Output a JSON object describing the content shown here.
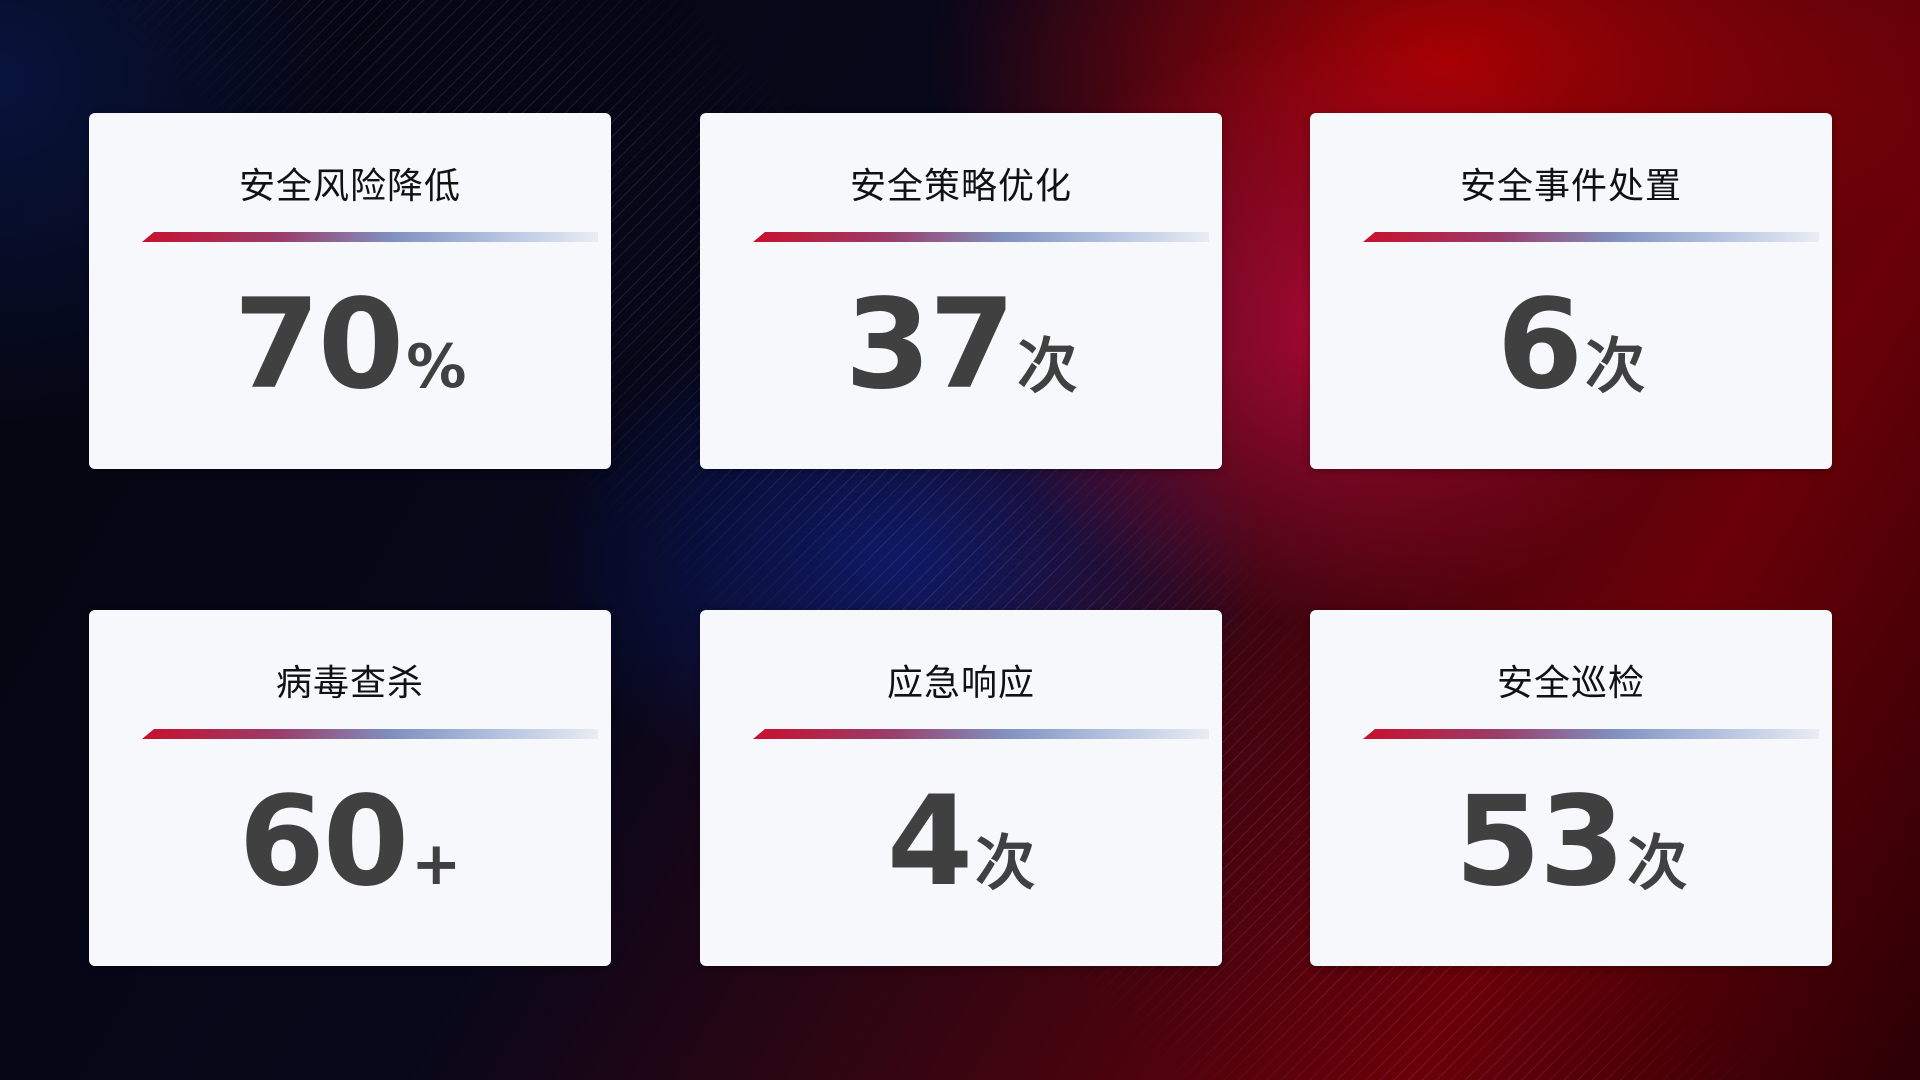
{
  "colors": {
    "accent_red": "#c8102e",
    "accent_blue": "#8090c0",
    "card_bg": "#f6f8fc",
    "value_text": "#404040"
  },
  "cards": [
    {
      "title": "安全风险降低",
      "value": "70",
      "unit": "%"
    },
    {
      "title": "安全策略优化",
      "value": "37",
      "unit": "次"
    },
    {
      "title": "安全事件处置",
      "value": "6",
      "unit": "次"
    },
    {
      "title": "病毒查杀",
      "value": "60",
      "unit": "+"
    },
    {
      "title": "应急响应",
      "value": "4",
      "unit": "次"
    },
    {
      "title": "安全巡检",
      "value": "53",
      "unit": "次"
    }
  ]
}
